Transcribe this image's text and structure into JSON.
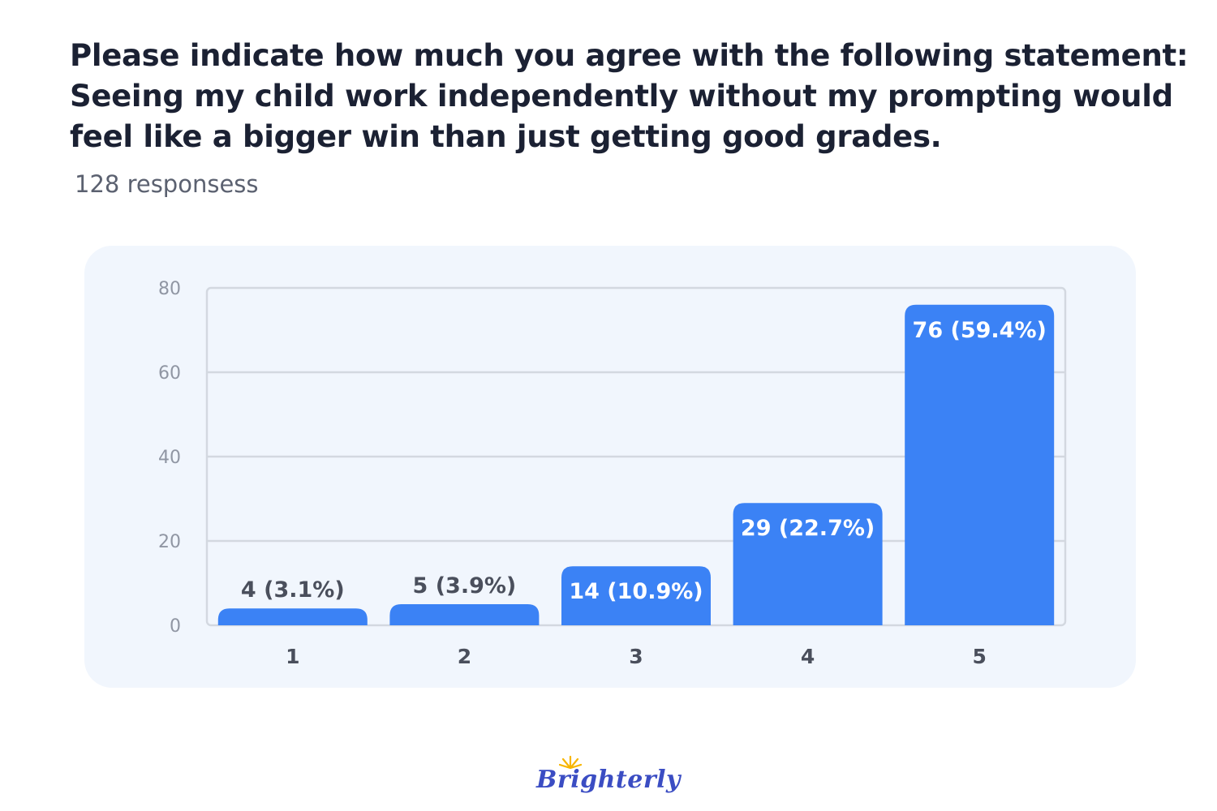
{
  "title_lines": [
    "Please indicate how much you agree with the following statement:",
    "Seeing my child work independently without my prompting would",
    "feel like a bigger win than just getting good grades."
  ],
  "subtitle": "128 responsess",
  "brand": {
    "name": "Brighterly",
    "color": "#3b4dc3",
    "sun_color": "#f7b500"
  },
  "chart_data": {
    "type": "bar",
    "title": "",
    "xlabel": "",
    "ylabel": "",
    "categories": [
      "1",
      "2",
      "3",
      "4",
      "5"
    ],
    "values": [
      4,
      5,
      14,
      29,
      76
    ],
    "data_labels": [
      "4 (3.1%)",
      "5 (3.9%)",
      "14 (10.9%)",
      "29 (22.7%)",
      "76 (59.4%)"
    ],
    "ylim": [
      0,
      80
    ],
    "yticks": [
      0,
      20,
      40,
      60,
      80
    ],
    "grid": true,
    "bar_color": "#3b82f5"
  }
}
